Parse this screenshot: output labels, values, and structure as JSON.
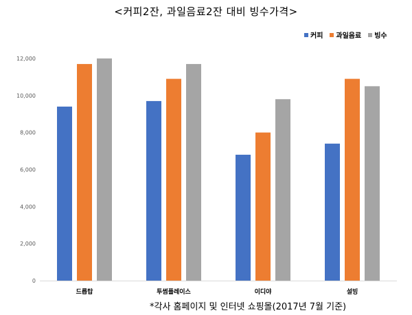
{
  "title": "<커피2잔, 과일음료2잔 대비 빙수가격>",
  "footnote": "*각사 홈페이지 및 인터넷 쇼핑몰(2017년 7월 기준)",
  "chart_data": {
    "type": "bar",
    "categories": [
      "드롭탑",
      "투썸플레이스",
      "이디야",
      "설빙"
    ],
    "series": [
      {
        "name": "커피",
        "color": "#4472C4",
        "values": [
          9400,
          9700,
          6800,
          7400
        ]
      },
      {
        "name": "과일음료",
        "color": "#ED7D31",
        "values": [
          11700,
          10900,
          8000,
          10900
        ]
      },
      {
        "name": "빙수",
        "color": "#A5A5A5",
        "values": [
          12000,
          11700,
          9800,
          10500
        ]
      }
    ],
    "ylim": [
      0,
      12000
    ],
    "yticks": [
      0,
      2000,
      4000,
      6000,
      8000,
      10000,
      12000
    ],
    "ytick_labels": [
      "0",
      "2,000",
      "4,000",
      "6,000",
      "8,000",
      "10,000",
      "12,000"
    ],
    "grid": false,
    "legend_position": "top-right"
  }
}
